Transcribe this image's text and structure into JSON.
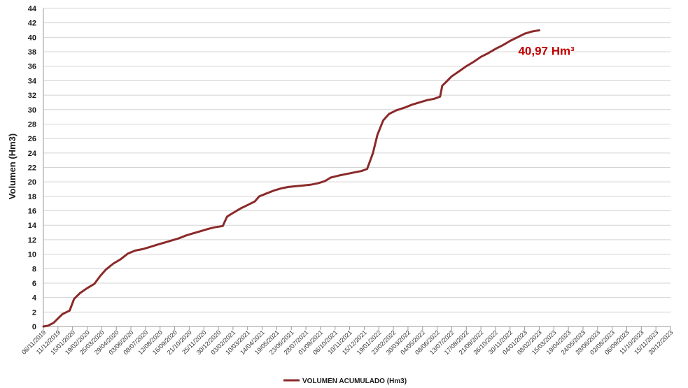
{
  "chart_data": {
    "type": "line",
    "title": "",
    "ylabel": "Volumen (Hm3)",
    "xlabel": "",
    "ylim": [
      0,
      44
    ],
    "y_ticks": [
      0,
      2,
      4,
      6,
      8,
      10,
      12,
      14,
      16,
      18,
      20,
      22,
      24,
      26,
      28,
      30,
      32,
      34,
      36,
      38,
      40,
      42,
      44
    ],
    "x_categories": [
      "06/11/2019",
      "11/12/2019",
      "15/01/2020",
      "19/02/2020",
      "25/03/2020",
      "29/04/2020",
      "03/06/2020",
      "08/07/2020",
      "12/08/2020",
      "16/09/2020",
      "21/10/2020",
      "25/11/2020",
      "30/12/2020",
      "03/02/2021",
      "10/03/2021",
      "14/04/2021",
      "19/05/2021",
      "23/06/2021",
      "28/07/2021",
      "01/09/2021",
      "06/10/2021",
      "10/11/2021",
      "15/12/2021",
      "19/01/2022",
      "23/02/2022",
      "30/03/2022",
      "04/05/2022",
      "08/06/2022",
      "13/07/2022",
      "17/08/2022",
      "21/09/2022",
      "26/10/2022",
      "30/11/2022",
      "04/01/2023",
      "08/02/2023",
      "15/03/2023",
      "19/04/2023",
      "24/05/2023",
      "28/06/2023",
      "02/08/2023",
      "06/09/2023",
      "11/10/2023",
      "15/11/2023",
      "20/12/2023"
    ],
    "grid": true,
    "legend_position": "bottom",
    "series": [
      {
        "name": "VOLUMEN ACUMULADO (Hm3)",
        "color": "#8b2a2a",
        "points": [
          [
            0,
            0
          ],
          [
            0.3,
            0.1
          ],
          [
            0.7,
            0.5
          ],
          [
            1.0,
            1.1
          ],
          [
            1.3,
            1.7
          ],
          [
            1.8,
            2.2
          ],
          [
            2.1,
            3.8
          ],
          [
            2.5,
            4.6
          ],
          [
            3.0,
            5.3
          ],
          [
            3.5,
            5.9
          ],
          [
            3.9,
            7.0
          ],
          [
            4.3,
            7.9
          ],
          [
            4.8,
            8.7
          ],
          [
            5.3,
            9.3
          ],
          [
            5.8,
            10.1
          ],
          [
            6.3,
            10.5
          ],
          [
            6.8,
            10.7
          ],
          [
            7.3,
            11.0
          ],
          [
            7.8,
            11.3
          ],
          [
            8.3,
            11.6
          ],
          [
            8.8,
            11.9
          ],
          [
            9.3,
            12.2
          ],
          [
            9.8,
            12.6
          ],
          [
            10.3,
            12.9
          ],
          [
            10.8,
            13.2
          ],
          [
            11.3,
            13.5
          ],
          [
            11.7,
            13.7
          ],
          [
            12.3,
            13.9
          ],
          [
            12.6,
            15.2
          ],
          [
            13.0,
            15.7
          ],
          [
            13.5,
            16.3
          ],
          [
            14.0,
            16.8
          ],
          [
            14.5,
            17.3
          ],
          [
            14.8,
            18.0
          ],
          [
            15.3,
            18.4
          ],
          [
            15.8,
            18.8
          ],
          [
            16.3,
            19.1
          ],
          [
            16.8,
            19.3
          ],
          [
            17.3,
            19.4
          ],
          [
            17.8,
            19.5
          ],
          [
            18.3,
            19.6
          ],
          [
            18.8,
            19.8
          ],
          [
            19.3,
            20.1
          ],
          [
            19.7,
            20.6
          ],
          [
            20.3,
            20.9
          ],
          [
            20.8,
            21.1
          ],
          [
            21.3,
            21.3
          ],
          [
            21.8,
            21.5
          ],
          [
            22.2,
            21.8
          ],
          [
            22.6,
            24.0
          ],
          [
            22.9,
            26.5
          ],
          [
            23.3,
            28.5
          ],
          [
            23.7,
            29.4
          ],
          [
            24.2,
            29.9
          ],
          [
            24.8,
            30.3
          ],
          [
            25.3,
            30.7
          ],
          [
            25.8,
            31.0
          ],
          [
            26.3,
            31.3
          ],
          [
            26.8,
            31.5
          ],
          [
            27.2,
            31.8
          ],
          [
            27.35,
            33.3
          ],
          [
            27.6,
            33.8
          ],
          [
            28.0,
            34.6
          ],
          [
            28.5,
            35.3
          ],
          [
            29.0,
            36.0
          ],
          [
            29.5,
            36.6
          ],
          [
            30.0,
            37.3
          ],
          [
            30.5,
            37.8
          ],
          [
            31.0,
            38.4
          ],
          [
            31.5,
            38.9
          ],
          [
            32.0,
            39.5
          ],
          [
            32.5,
            40.0
          ],
          [
            33.0,
            40.5
          ],
          [
            33.5,
            40.8
          ],
          [
            34.0,
            40.97
          ]
        ]
      }
    ],
    "annotations": [
      {
        "text": "40,97 Hm³",
        "x": 34.0,
        "y": 40.97,
        "color": "#c00000"
      }
    ]
  }
}
